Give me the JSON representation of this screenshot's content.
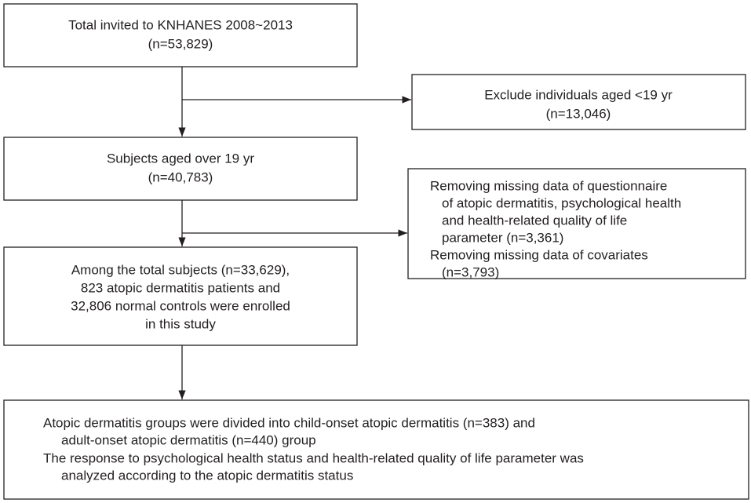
{
  "nodes": [
    {
      "lines": [
        "Total invited to KNHANES 2008~2013",
        "(n=53,829)"
      ]
    },
    {
      "lines": [
        "Exclude individuals aged <19 yr",
        "(n=13,046)"
      ]
    },
    {
      "lines": [
        "Subjects aged over 19 yr",
        "(n=40,783)"
      ]
    },
    {
      "lines": [
        "Removing missing data of questionnaire",
        "of atopic dermatitis, psychological health",
        "and health-related quality of life",
        "parameter (n=3,361)",
        "Removing missing data of covariates",
        "(n=3,793)"
      ]
    },
    {
      "lines": [
        "Among the total subjects (n=33,629),",
        "823 atopic dermatitis patients and",
        "32,806 normal controls were enrolled",
        "in this study"
      ]
    },
    {
      "lines": [
        "Atopic dermatitis groups were divided into child-onset atopic dermatitis (n=383) and",
        "adult-onset atopic dermatitis (n=440) group",
        "The response to psychological health status and health-related quality of life parameter was",
        "analyzed according to the atopic dermatitis status"
      ]
    }
  ]
}
